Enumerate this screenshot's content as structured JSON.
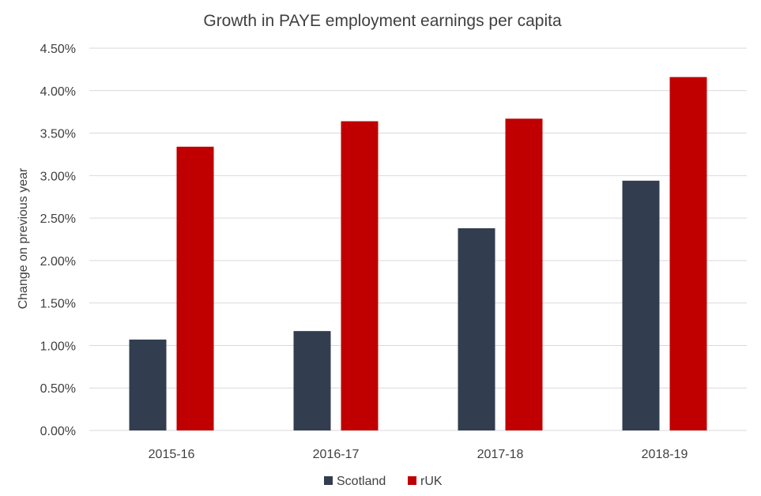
{
  "chart_data": {
    "type": "bar",
    "title": "Growth in PAYE employment earnings per capita",
    "xlabel": "",
    "ylabel": "Change on previous year",
    "categories": [
      "2015-16",
      "2016-17",
      "2017-18",
      "2018-19"
    ],
    "series": [
      {
        "name": "Scotland",
        "values": [
          1.07,
          1.17,
          2.38,
          2.94
        ],
        "color": "#323D4F"
      },
      {
        "name": "rUK",
        "values": [
          3.34,
          3.64,
          3.67,
          4.16
        ],
        "color": "#C00000"
      }
    ],
    "ylim": [
      0,
      4.5
    ],
    "y_ticks": [
      "0.00%",
      "0.50%",
      "1.00%",
      "1.50%",
      "2.00%",
      "2.50%",
      "3.00%",
      "3.50%",
      "4.00%",
      "4.50%"
    ],
    "y_tick_values": [
      0,
      0.5,
      1.0,
      1.5,
      2.0,
      2.5,
      3.0,
      3.5,
      4.0,
      4.5
    ],
    "grid": true,
    "legend_position": "bottom",
    "gridline_color": "#D9D9D9"
  }
}
